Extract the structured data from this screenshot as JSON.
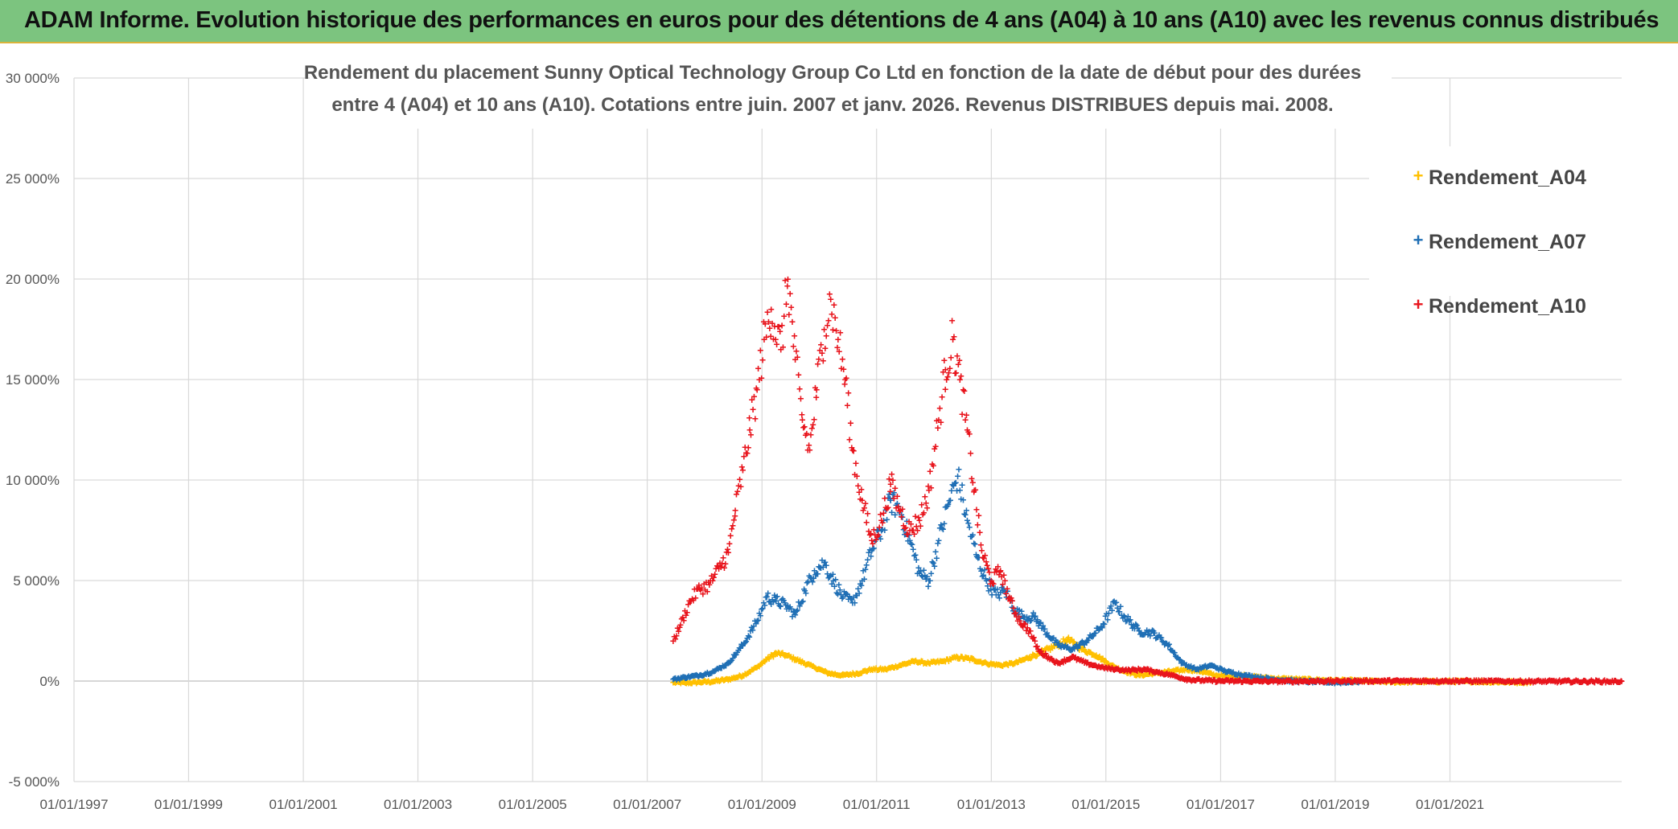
{
  "banner": {
    "title": "ADAM Informe. Evolution historique des performances en euros pour des détentions de 4 ans (A04) à 10 ans (A10) avec les revenus connus distribués"
  },
  "colors": {
    "banner_bg": "#7cc47f",
    "A04": "#ffc000",
    "A07": "#1f6fb5",
    "A10": "#e8141c",
    "grid": "#d9d9d9"
  },
  "chart_data": {
    "type": "scatter",
    "title_lines": [
      "Rendement du placement Sunny Optical Technology Group Co Ltd en fonction de la date de début pour des durées",
      "entre 4 (A04) et 10 ans (A10). Cotations entre juin. 2007 et janv. 2026. Revenus DISTRIBUES depuis mai. 2008."
    ],
    "x_axis": {
      "type": "date",
      "min": "1997-01-01",
      "max": "2023-12-31",
      "tick_labels": [
        "01/01/1997",
        "01/01/1999",
        "01/01/2001",
        "01/01/2003",
        "01/01/2005",
        "01/01/2007",
        "01/01/2009",
        "01/01/2011",
        "01/01/2013",
        "01/01/2015",
        "01/01/2017",
        "01/01/2019",
        "01/01/2021"
      ]
    },
    "y_axis": {
      "min": -5000,
      "max": 30000,
      "unit": "%",
      "tick_values": [
        -5000,
        0,
        5000,
        10000,
        15000,
        20000,
        25000,
        30000
      ],
      "tick_labels": [
        "-5 000%",
        "0%",
        "5 000%",
        "10 000%",
        "15 000%",
        "20 000%",
        "25 000%",
        "30 000%"
      ]
    },
    "grid": true,
    "legend_position": "top-right",
    "marker": "+",
    "series": [
      {
        "name": "Rendement_A04",
        "points": [
          [
            "2007-06-15",
            -50
          ],
          [
            "2007-09-01",
            -80
          ],
          [
            "2007-12-01",
            -40
          ],
          [
            "2008-03-01",
            0
          ],
          [
            "2008-06-01",
            100
          ],
          [
            "2008-09-01",
            300
          ],
          [
            "2008-12-01",
            700
          ],
          [
            "2009-02-01",
            1100
          ],
          [
            "2009-04-01",
            1400
          ],
          [
            "2009-06-01",
            1300
          ],
          [
            "2009-09-01",
            1000
          ],
          [
            "2009-12-01",
            700
          ],
          [
            "2010-03-01",
            400
          ],
          [
            "2010-06-01",
            300
          ],
          [
            "2010-09-01",
            400
          ],
          [
            "2010-12-01",
            600
          ],
          [
            "2011-03-01",
            600
          ],
          [
            "2011-06-01",
            800
          ],
          [
            "2011-09-01",
            1000
          ],
          [
            "2011-12-01",
            900
          ],
          [
            "2012-03-01",
            1000
          ],
          [
            "2012-06-01",
            1200
          ],
          [
            "2012-09-01",
            1100
          ],
          [
            "2012-12-01",
            900
          ],
          [
            "2013-03-01",
            800
          ],
          [
            "2013-06-01",
            900
          ],
          [
            "2013-09-01",
            1200
          ],
          [
            "2013-12-01",
            1500
          ],
          [
            "2014-03-01",
            1800
          ],
          [
            "2014-05-01",
            2100
          ],
          [
            "2014-08-01",
            1600
          ],
          [
            "2014-11-01",
            1300
          ],
          [
            "2015-02-01",
            800
          ],
          [
            "2015-05-01",
            500
          ],
          [
            "2015-08-01",
            300
          ],
          [
            "2015-11-01",
            400
          ],
          [
            "2016-03-01",
            500
          ],
          [
            "2016-06-01",
            600
          ],
          [
            "2016-09-01",
            500
          ],
          [
            "2016-12-01",
            300
          ],
          [
            "2017-03-01",
            250
          ],
          [
            "2017-06-01",
            300
          ],
          [
            "2017-09-01",
            200
          ],
          [
            "2017-12-01",
            150
          ],
          [
            "2018-06-01",
            100
          ],
          [
            "2018-12-01",
            50
          ],
          [
            "2019-06-01",
            30
          ],
          [
            "2020-01-01",
            -30
          ],
          [
            "2020-06-01",
            -20
          ],
          [
            "2021-01-01",
            0
          ],
          [
            "2021-06-01",
            -10
          ],
          [
            "2022-01-01",
            -30
          ],
          [
            "2022-06-01",
            -40
          ]
        ]
      },
      {
        "name": "Rendement_A07",
        "points": [
          [
            "2007-06-15",
            100
          ],
          [
            "2007-09-01",
            200
          ],
          [
            "2007-12-01",
            300
          ],
          [
            "2008-03-01",
            500
          ],
          [
            "2008-06-01",
            900
          ],
          [
            "2008-09-01",
            1800
          ],
          [
            "2008-12-01",
            3000
          ],
          [
            "2009-02-01",
            4200
          ],
          [
            "2009-04-01",
            4000
          ],
          [
            "2009-06-01",
            3800
          ],
          [
            "2009-08-01",
            3300
          ],
          [
            "2009-10-01",
            4500
          ],
          [
            "2009-12-01",
            5500
          ],
          [
            "2010-02-01",
            5900
          ],
          [
            "2010-04-01",
            5000
          ],
          [
            "2010-06-01",
            4200
          ],
          [
            "2010-08-01",
            3900
          ],
          [
            "2010-10-01",
            5000
          ],
          [
            "2010-12-01",
            6500
          ],
          [
            "2011-02-01",
            7500
          ],
          [
            "2011-04-01",
            9000
          ],
          [
            "2011-06-01",
            8500
          ],
          [
            "2011-08-01",
            7000
          ],
          [
            "2011-10-01",
            5400
          ],
          [
            "2011-12-01",
            5000
          ],
          [
            "2012-02-01",
            7000
          ],
          [
            "2012-04-01",
            8800
          ],
          [
            "2012-06-01",
            10200
          ],
          [
            "2012-08-01",
            8000
          ],
          [
            "2012-10-01",
            6200
          ],
          [
            "2012-12-01",
            5000
          ],
          [
            "2013-02-01",
            4300
          ],
          [
            "2013-04-01",
            4500
          ],
          [
            "2013-06-01",
            3500
          ],
          [
            "2013-08-01",
            3200
          ],
          [
            "2013-10-01",
            3200
          ],
          [
            "2013-12-01",
            2600
          ],
          [
            "2014-03-01",
            1800
          ],
          [
            "2014-06-01",
            1600
          ],
          [
            "2014-09-01",
            2000
          ],
          [
            "2014-12-01",
            2700
          ],
          [
            "2015-03-01",
            3900
          ],
          [
            "2015-05-01",
            3200
          ],
          [
            "2015-08-01",
            2500
          ],
          [
            "2015-11-01",
            2400
          ],
          [
            "2016-02-01",
            1800
          ],
          [
            "2016-05-01",
            900
          ],
          [
            "2016-08-01",
            600
          ],
          [
            "2016-11-01",
            800
          ],
          [
            "2017-02-01",
            500
          ],
          [
            "2017-06-01",
            300
          ],
          [
            "2017-12-01",
            100
          ],
          [
            "2018-06-01",
            0
          ],
          [
            "2019-01-01",
            -50
          ],
          [
            "2019-06-01",
            -20
          ]
        ]
      },
      {
        "name": "Rendement_A10",
        "points": [
          [
            "2007-06-15",
            2000
          ],
          [
            "2007-08-01",
            2800
          ],
          [
            "2007-10-01",
            4000
          ],
          [
            "2007-12-01",
            4600
          ],
          [
            "2008-02-01",
            4800
          ],
          [
            "2008-04-01",
            5600
          ],
          [
            "2008-06-01",
            6400
          ],
          [
            "2008-07-15",
            8500
          ],
          [
            "2008-09-01",
            10500
          ],
          [
            "2008-10-15",
            12500
          ],
          [
            "2008-12-01",
            14500
          ],
          [
            "2009-01-15",
            17000
          ],
          [
            "2009-03-01",
            18500
          ],
          [
            "2009-05-01",
            16500
          ],
          [
            "2009-06-15",
            20000
          ],
          [
            "2009-08-01",
            16000
          ],
          [
            "2009-09-15",
            13000
          ],
          [
            "2009-11-01",
            11500
          ],
          [
            "2009-12-15",
            14500
          ],
          [
            "2010-02-01",
            17500
          ],
          [
            "2010-03-15",
            19000
          ],
          [
            "2010-05-01",
            17000
          ],
          [
            "2010-06-15",
            15000
          ],
          [
            "2010-08-01",
            11500
          ],
          [
            "2010-10-01",
            9000
          ],
          [
            "2010-12-01",
            7000
          ],
          [
            "2011-02-01",
            8000
          ],
          [
            "2011-04-01",
            9800
          ],
          [
            "2011-06-01",
            8500
          ],
          [
            "2011-08-01",
            7500
          ],
          [
            "2011-10-01",
            8000
          ],
          [
            "2011-12-01",
            9500
          ],
          [
            "2012-02-01",
            13000
          ],
          [
            "2012-03-15",
            15500
          ],
          [
            "2012-05-01",
            17000
          ],
          [
            "2012-06-15",
            15000
          ],
          [
            "2012-08-01",
            12500
          ],
          [
            "2012-09-15",
            9500
          ],
          [
            "2012-11-01",
            6500
          ],
          [
            "2013-01-01",
            5000
          ],
          [
            "2013-03-01",
            5500
          ],
          [
            "2013-05-01",
            4000
          ],
          [
            "2013-07-01",
            3000
          ],
          [
            "2013-09-01",
            2500
          ],
          [
            "2013-11-01",
            1500
          ],
          [
            "2014-01-01",
            1200
          ],
          [
            "2014-03-01",
            900
          ],
          [
            "2014-06-01",
            1200
          ],
          [
            "2014-09-01",
            900
          ],
          [
            "2014-12-01",
            700
          ],
          [
            "2015-03-01",
            600
          ],
          [
            "2015-06-01",
            550
          ],
          [
            "2015-09-01",
            600
          ],
          [
            "2015-12-01",
            450
          ],
          [
            "2016-03-01",
            300
          ],
          [
            "2016-06-01",
            100
          ],
          [
            "2016-09-01",
            50
          ],
          [
            "2017-01-01",
            20
          ],
          [
            "2018-01-01",
            0
          ],
          [
            "2019-06-01",
            20
          ],
          [
            "2021-01-01",
            20
          ],
          [
            "2022-06-01",
            0
          ],
          [
            "2023-12-31",
            0
          ]
        ]
      }
    ]
  }
}
